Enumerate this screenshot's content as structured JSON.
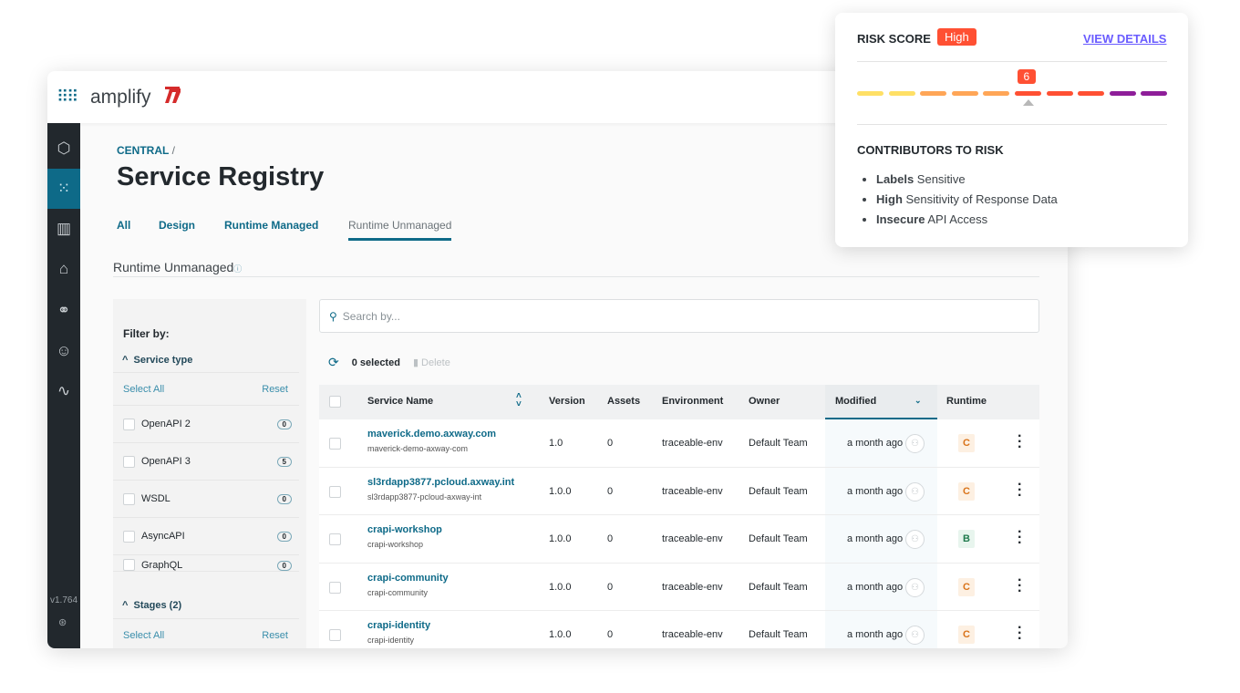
{
  "header": {
    "logo_text": "amplify",
    "apps_icon": "grid-icon"
  },
  "sidebar": {
    "items": [
      {
        "icon": "hexagon-icon"
      },
      {
        "icon": "grid-dots-icon",
        "active": true
      },
      {
        "icon": "library-icon"
      },
      {
        "icon": "store-icon"
      },
      {
        "icon": "circles-icon"
      },
      {
        "icon": "users-icon"
      },
      {
        "icon": "pulse-icon"
      }
    ],
    "version": "v1.764"
  },
  "breadcrumb": {
    "root": "CENTRAL",
    "sep": "/"
  },
  "page_title": "Service Registry",
  "tabs": [
    {
      "label": "All"
    },
    {
      "label": "Design"
    },
    {
      "label": "Runtime Managed"
    },
    {
      "label": "Runtime Unmanaged",
      "selected": true
    }
  ],
  "section_title": "Runtime Unmanaged",
  "filter": {
    "title": "Filter by:",
    "service_type": "Service type",
    "select_all": "Select All",
    "reset": "Reset",
    "types": [
      {
        "label": "OpenAPI 2",
        "count": "0"
      },
      {
        "label": "OpenAPI 3",
        "count": "5"
      },
      {
        "label": "WSDL",
        "count": "0"
      },
      {
        "label": "AsyncAPI",
        "count": "0"
      },
      {
        "label": "GraphQL",
        "count": "0"
      }
    ],
    "stages": "Stages (2)",
    "stages_select_all": "Select All",
    "stages_reset": "Reset"
  },
  "search": {
    "placeholder": "Search by..."
  },
  "toolbar": {
    "selected": "0 selected",
    "delete": "Delete"
  },
  "table": {
    "headers": [
      "Service Name",
      "Version",
      "Assets",
      "Environment",
      "Owner",
      "Modified",
      "Runtime"
    ],
    "rows": [
      {
        "name": "maverick.demo.axway.com",
        "sub": "maverick-demo-axway-com",
        "version": "1.0",
        "assets": "0",
        "env": "traceable-env",
        "owner": "Default Team",
        "modified": "a month ago",
        "grade": "C"
      },
      {
        "name": "sl3rdapp3877.pcloud.axway.int",
        "sub": "sl3rdapp3877-pcloud-axway-int",
        "version": "1.0.0",
        "assets": "0",
        "env": "traceable-env",
        "owner": "Default Team",
        "modified": "a month ago",
        "grade": "C"
      },
      {
        "name": "crapi-workshop",
        "sub": "crapi-workshop",
        "version": "1.0.0",
        "assets": "0",
        "env": "traceable-env",
        "owner": "Default Team",
        "modified": "a month ago",
        "grade": "B"
      },
      {
        "name": "crapi-community",
        "sub": "crapi-community",
        "version": "1.0.0",
        "assets": "0",
        "env": "traceable-env",
        "owner": "Default Team",
        "modified": "a month ago",
        "grade": "C"
      },
      {
        "name": "crapi-identity",
        "sub": "crapi-identity",
        "version": "1.0.0",
        "assets": "0",
        "env": "traceable-env",
        "owner": "Default Team",
        "modified": "a month ago",
        "grade": "C"
      }
    ]
  },
  "risk": {
    "title": "RISK SCORE",
    "level": "High",
    "view_details": "VIEW DETAILS",
    "score": "6",
    "score_value": 6,
    "max": 10,
    "segment_colors": [
      "#ffe066",
      "#ffe066",
      "#ffa657",
      "#ffa657",
      "#ffa657",
      "#ff5033",
      "#ff5033",
      "#ff5033",
      "#8e1e99",
      "#8e1e99"
    ],
    "contributors_title": "CONTRIBUTORS TO RISK",
    "contributors": [
      {
        "bold": "Labels",
        "rest": " Sensitive"
      },
      {
        "bold": "High",
        "rest": " Sensitivity of Response Data"
      },
      {
        "bold": "Insecure",
        "rest": " API Access"
      }
    ]
  },
  "colors": {
    "accent": "#0e6a88",
    "high": "#ff5033",
    "grade_c": "#d9731a",
    "grade_b": "#1f7a4d"
  }
}
